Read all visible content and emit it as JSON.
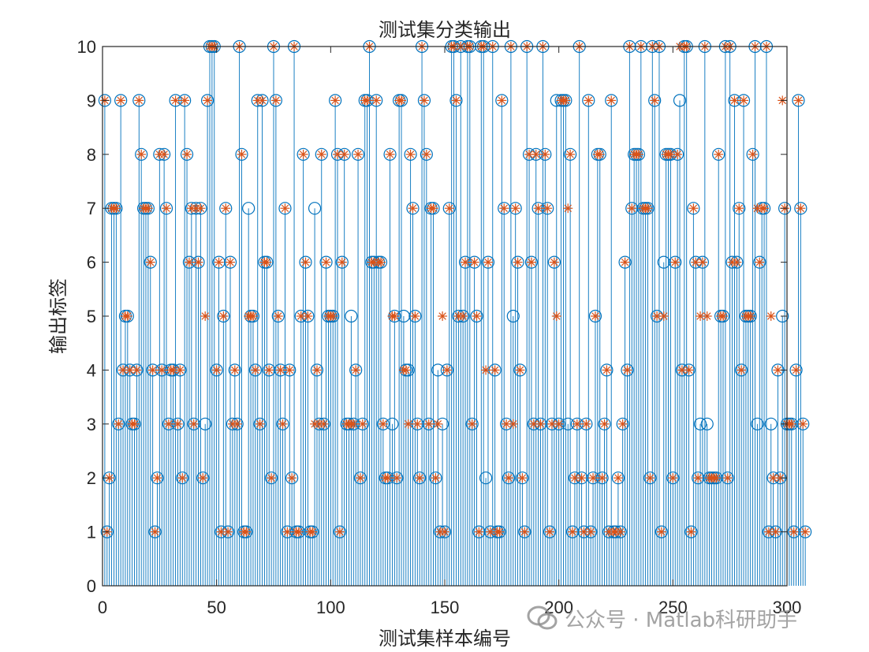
{
  "chart_data": {
    "type": "stem",
    "title": "测试集分类输出",
    "xlabel": "测试集样本编号",
    "ylabel": "输出标签",
    "xlim": [
      0,
      300
    ],
    "ylim": [
      0,
      10
    ],
    "xticks": [
      0,
      50,
      100,
      150,
      200,
      250,
      300
    ],
    "yticks": [
      0,
      1,
      2,
      3,
      4,
      5,
      6,
      7,
      8,
      9,
      10
    ],
    "colors": {
      "predicted": "#0072BD",
      "true": "#D95319"
    },
    "series": [
      {
        "marker": "o",
        "color": "#0072BD",
        "values": [
          9,
          1,
          2,
          7,
          7,
          7,
          3,
          9,
          4,
          5,
          5,
          4,
          3,
          3,
          4,
          9,
          8,
          7,
          7,
          7,
          6,
          4,
          1,
          2,
          8,
          4,
          8,
          7,
          3,
          4,
          4,
          9,
          3,
          4,
          2,
          9,
          8,
          6,
          7,
          3,
          7,
          6,
          7,
          2,
          3,
          9,
          10,
          10,
          10,
          4,
          6,
          1,
          5,
          7,
          1,
          6,
          3,
          4,
          3,
          10,
          8,
          1,
          1,
          7,
          5,
          5,
          4,
          9,
          3,
          9,
          6,
          6,
          4,
          2,
          10,
          9,
          5,
          4,
          3,
          7,
          1,
          4,
          2,
          10,
          1,
          1,
          5,
          8,
          6,
          5,
          1,
          1,
          7,
          4,
          3,
          8,
          3,
          6,
          5,
          5,
          5,
          9,
          8,
          1,
          6,
          8,
          3,
          3,
          5,
          3,
          4,
          8,
          2,
          3,
          9,
          9,
          10,
          6,
          6,
          9,
          6,
          6,
          3,
          2,
          2,
          8,
          3,
          5,
          2,
          9,
          9,
          5,
          4,
          4,
          8,
          7,
          5,
          3,
          2,
          10,
          9,
          8,
          3,
          7,
          7,
          2,
          4,
          1,
          3,
          1,
          4,
          7,
          10,
          10,
          9,
          5,
          10,
          5,
          6,
          10,
          10,
          3,
          6,
          5,
          1,
          10,
          10,
          2,
          6,
          1,
          10,
          4,
          1,
          1,
          9,
          7,
          3,
          2,
          10,
          5,
          7,
          6,
          4,
          2,
          1,
          10,
          8,
          6,
          3,
          8,
          7,
          3,
          10,
          8,
          7,
          1,
          3,
          6,
          9,
          3,
          9,
          9,
          9,
          3,
          8,
          1,
          2,
          3,
          10,
          2,
          1,
          3,
          9,
          1,
          2,
          5,
          8,
          8,
          2,
          3,
          4,
          1,
          9,
          1,
          1,
          2,
          1,
          3,
          6,
          4,
          10,
          7,
          8,
          8,
          8,
          10,
          7,
          7,
          7,
          2,
          10,
          9,
          5,
          10,
          1,
          6,
          8,
          8,
          8,
          2,
          6,
          8,
          9,
          4,
          10,
          10,
          4,
          1,
          7,
          6,
          2,
          3,
          6,
          10,
          3,
          2,
          2,
          2,
          2,
          8,
          5,
          5,
          10,
          2,
          10,
          6,
          9,
          6,
          7,
          4,
          9,
          5,
          5,
          5,
          8,
          10,
          3,
          6,
          7,
          7,
          10,
          1,
          3,
          2,
          1,
          4,
          2,
          5,
          7,
          3,
          3,
          3,
          1,
          4,
          9,
          7,
          3,
          1
        ]
      },
      {
        "marker": "*",
        "color": "#D95319",
        "values": [
          9,
          1,
          2,
          7,
          7,
          7,
          3,
          9,
          4,
          5,
          5,
          4,
          3,
          3,
          4,
          9,
          8,
          7,
          7,
          7,
          6,
          4,
          1,
          2,
          8,
          4,
          8,
          7,
          3,
          4,
          4,
          9,
          3,
          4,
          2,
          9,
          8,
          6,
          7,
          3,
          7,
          6,
          7,
          2,
          5,
          9,
          10,
          10,
          10,
          4,
          6,
          1,
          5,
          7,
          1,
          6,
          3,
          4,
          3,
          10,
          8,
          1,
          1,
          5,
          5,
          5,
          4,
          9,
          3,
          9,
          6,
          6,
          4,
          2,
          10,
          9,
          5,
          4,
          3,
          7,
          1,
          4,
          2,
          10,
          1,
          1,
          5,
          8,
          6,
          5,
          1,
          1,
          3,
          4,
          3,
          8,
          3,
          6,
          5,
          5,
          5,
          9,
          8,
          1,
          6,
          8,
          3,
          3,
          3,
          3,
          4,
          8,
          2,
          3,
          9,
          9,
          10,
          6,
          6,
          9,
          6,
          6,
          3,
          2,
          2,
          8,
          5,
          5,
          2,
          9,
          9,
          4,
          4,
          3,
          8,
          7,
          5,
          3,
          2,
          10,
          9,
          8,
          3,
          7,
          7,
          2,
          3,
          1,
          5,
          1,
          4,
          7,
          10,
          10,
          9,
          5,
          10,
          5,
          6,
          10,
          10,
          3,
          6,
          5,
          1,
          10,
          10,
          4,
          6,
          1,
          10,
          4,
          1,
          1,
          9,
          7,
          3,
          2,
          10,
          3,
          7,
          6,
          4,
          2,
          1,
          10,
          8,
          6,
          3,
          8,
          7,
          3,
          10,
          8,
          7,
          1,
          3,
          6,
          5,
          3,
          9,
          9,
          9,
          7,
          8,
          1,
          2,
          3,
          10,
          2,
          1,
          3,
          9,
          1,
          2,
          5,
          8,
          8,
          2,
          3,
          4,
          1,
          9,
          1,
          1,
          2,
          1,
          3,
          6,
          4,
          10,
          7,
          8,
          8,
          8,
          10,
          7,
          7,
          7,
          2,
          10,
          9,
          5,
          10,
          1,
          5,
          8,
          8,
          8,
          2,
          6,
          8,
          10,
          4,
          10,
          10,
          4,
          1,
          7,
          6,
          2,
          5,
          6,
          10,
          5,
          2,
          2,
          2,
          2,
          8,
          5,
          5,
          10,
          2,
          10,
          6,
          9,
          6,
          7,
          4,
          9,
          5,
          5,
          5,
          8,
          10,
          7,
          6,
          7,
          7,
          10,
          1,
          5,
          2,
          1,
          4,
          2,
          9,
          7,
          3,
          3,
          3,
          1,
          4,
          9,
          7,
          3,
          1
        ]
      }
    ]
  },
  "watermark": {
    "text": "公众号 · Matlab科研助手",
    "icon": "wechat-icon"
  }
}
